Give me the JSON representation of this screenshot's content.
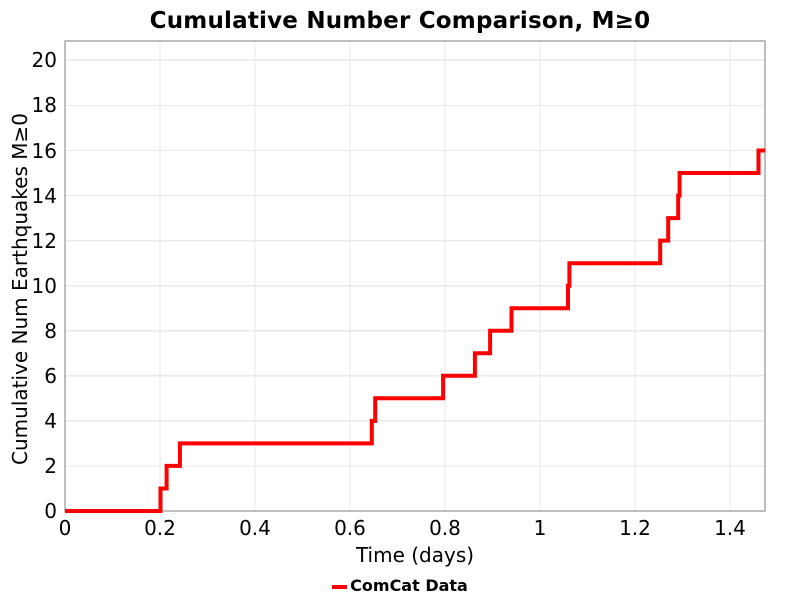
{
  "chart_data": {
    "type": "line",
    "subtype": "step-post-cumulative",
    "title": "Cumulative Number Comparison, M≥0",
    "xlabel": "Time (days)",
    "ylabel": "Cumulative Num Earthquakes M≥0",
    "xlim": [
      0,
      1.4737
    ],
    "ylim": [
      0,
      20.86
    ],
    "grid": true,
    "legend_position": "bottom-center",
    "xticks": {
      "values": [
        0,
        0.2,
        0.4,
        0.6,
        0.8,
        1,
        1.2,
        1.4
      ],
      "labels": [
        "0",
        "0.2",
        "0.4",
        "0.6",
        "0.8",
        "1",
        "1.2",
        "1.4"
      ]
    },
    "yticks": {
      "values": [
        0,
        2,
        4,
        6,
        8,
        10,
        12,
        14,
        16,
        18,
        20
      ],
      "labels": [
        "0",
        "2",
        "4",
        "6",
        "8",
        "10",
        "12",
        "14",
        "16",
        "18",
        "20"
      ]
    },
    "series": [
      {
        "name": "ComCat Data",
        "color": "#ff0000",
        "line_width": 4,
        "start_point": {
          "t": 0,
          "n": 0
        },
        "event_times_days": [
          0.201,
          0.214,
          0.242,
          0.646,
          0.653,
          0.796,
          0.863,
          0.895,
          0.94,
          1.059,
          1.062,
          1.253,
          1.27,
          1.291,
          1.294,
          1.46
        ],
        "cumulative_counts": [
          1,
          2,
          3,
          4,
          5,
          6,
          7,
          8,
          9,
          10,
          11,
          12,
          13,
          14,
          15,
          16
        ],
        "end_t": 1.4737
      }
    ]
  },
  "legend": {
    "label": "ComCat Data"
  },
  "colors": {
    "line": "#ff0000",
    "grid": "#e9e9e9",
    "frame": "#a8a8a8",
    "text": "#000000",
    "background": "#ffffff"
  }
}
